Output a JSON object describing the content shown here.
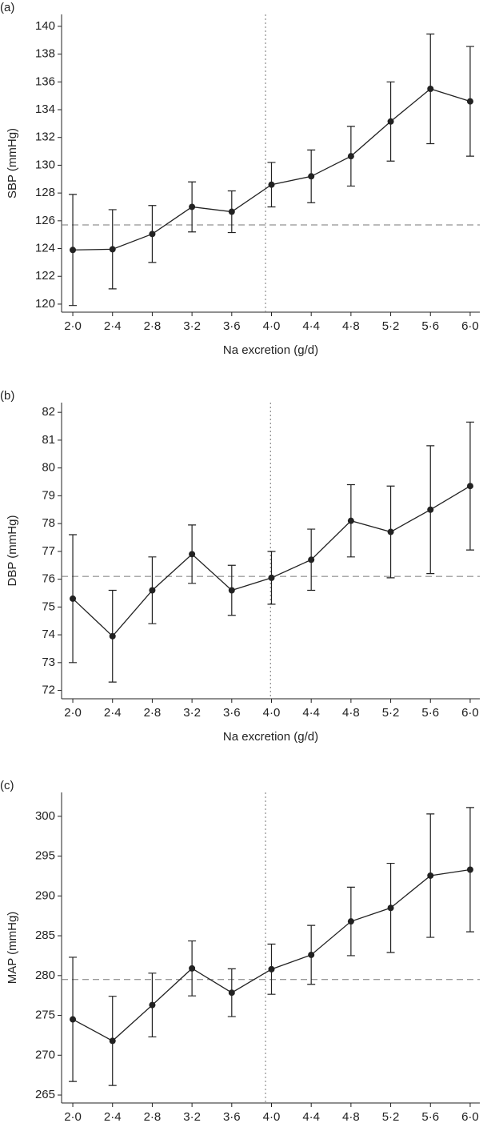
{
  "chart_data": [
    {
      "type": "line",
      "panel_label": "(a)",
      "ylabel": "SBP (mmHg)",
      "xlabel": "Na excretion (g/d)",
      "x": [
        2.0,
        2.4,
        2.8,
        3.2,
        3.6,
        4.0,
        4.4,
        4.8,
        5.2,
        5.6,
        6.0
      ],
      "values": [
        123.9,
        123.95,
        125.05,
        127.0,
        126.65,
        128.6,
        129.2,
        130.65,
        133.15,
        135.5,
        134.6
      ],
      "errors": [
        4.0,
        2.85,
        2.05,
        1.8,
        1.5,
        1.6,
        1.9,
        2.15,
        2.85,
        3.95,
        3.95
      ],
      "color": "#222222",
      "hline": 125.7,
      "vline": 3.94,
      "xlim": [
        1.887,
        6.097
      ],
      "ylim": [
        119.42,
        140.86
      ],
      "xticks": [
        {
          "value": 2.0,
          "label": "2·0"
        },
        {
          "value": 2.4,
          "label": "2·4"
        },
        {
          "value": 2.8,
          "label": "2·8"
        },
        {
          "value": 3.2,
          "label": "3·2"
        },
        {
          "value": 3.6,
          "label": "3·6"
        },
        {
          "value": 4.0,
          "label": "4·0"
        },
        {
          "value": 4.4,
          "label": "4·4"
        },
        {
          "value": 4.8,
          "label": "4·8"
        },
        {
          "value": 5.2,
          "label": "5·2"
        },
        {
          "value": 5.6,
          "label": "5·6"
        },
        {
          "value": 6.0,
          "label": "6·0"
        }
      ],
      "yticks": [
        120,
        122,
        124,
        126,
        128,
        130,
        132,
        134,
        136,
        138,
        140
      ]
    },
    {
      "type": "line",
      "panel_label": "(b)",
      "ylabel": "DBP (mmHg)",
      "xlabel": "Na excretion (g/d)",
      "x": [
        2.0,
        2.4,
        2.8,
        3.2,
        3.6,
        4.0,
        4.4,
        4.8,
        5.2,
        5.6,
        6.0
      ],
      "values": [
        75.3,
        73.95,
        75.6,
        76.9,
        75.6,
        76.05,
        76.7,
        78.1,
        77.7,
        78.5,
        79.35
      ],
      "errors": [
        2.3,
        1.65,
        1.2,
        1.05,
        0.9,
        0.95,
        1.1,
        1.3,
        1.65,
        2.3,
        2.3
      ],
      "color": "#222222",
      "hline": 76.1,
      "vline": 3.99,
      "xlim": [
        1.887,
        6.097
      ],
      "ylim": [
        71.7,
        82.35
      ],
      "xticks": [
        {
          "value": 2.0,
          "label": "2·0"
        },
        {
          "value": 2.4,
          "label": "2·4"
        },
        {
          "value": 2.8,
          "label": "2·8"
        },
        {
          "value": 3.2,
          "label": "3·2"
        },
        {
          "value": 3.6,
          "label": "3·6"
        },
        {
          "value": 4.0,
          "label": "4·0"
        },
        {
          "value": 4.4,
          "label": "4·4"
        },
        {
          "value": 4.8,
          "label": "4·8"
        },
        {
          "value": 5.2,
          "label": "5·2"
        },
        {
          "value": 5.6,
          "label": "5·6"
        },
        {
          "value": 6.0,
          "label": "6·0"
        }
      ],
      "yticks": [
        72,
        73,
        74,
        75,
        76,
        77,
        78,
        79,
        80,
        81,
        82
      ]
    },
    {
      "type": "line",
      "panel_label": "(c)",
      "ylabel": "MAP (mmHg)",
      "xlabel": "Na excretion (g/d)",
      "x": [
        2.0,
        2.4,
        2.8,
        3.2,
        3.6,
        4.0,
        4.4,
        4.8,
        5.2,
        5.6,
        6.0
      ],
      "values": [
        274.5,
        271.8,
        276.3,
        280.9,
        277.85,
        280.8,
        282.6,
        286.8,
        288.5,
        292.55,
        293.3
      ],
      "errors": [
        7.8,
        5.6,
        4.0,
        3.45,
        3.0,
        3.15,
        3.7,
        4.3,
        5.6,
        7.75,
        7.8
      ],
      "color": "#222222",
      "hline": 279.5,
      "vline": 3.94,
      "xlim": [
        1.887,
        6.097
      ],
      "ylim": [
        264.0,
        303.0
      ],
      "xticks": [
        {
          "value": 2.0,
          "label": "2·0"
        },
        {
          "value": 2.4,
          "label": "2·4"
        },
        {
          "value": 2.8,
          "label": "2·8"
        },
        {
          "value": 3.2,
          "label": "3·2"
        },
        {
          "value": 3.6,
          "label": "3·6"
        },
        {
          "value": 4.0,
          "label": "4·0"
        },
        {
          "value": 4.4,
          "label": "4·4"
        },
        {
          "value": 4.8,
          "label": "4·8"
        },
        {
          "value": 5.2,
          "label": "5·2"
        },
        {
          "value": 5.6,
          "label": "5·6"
        },
        {
          "value": 6.0,
          "label": "6·0"
        }
      ],
      "yticks": [
        265,
        270,
        275,
        280,
        285,
        290,
        295,
        300
      ]
    }
  ]
}
